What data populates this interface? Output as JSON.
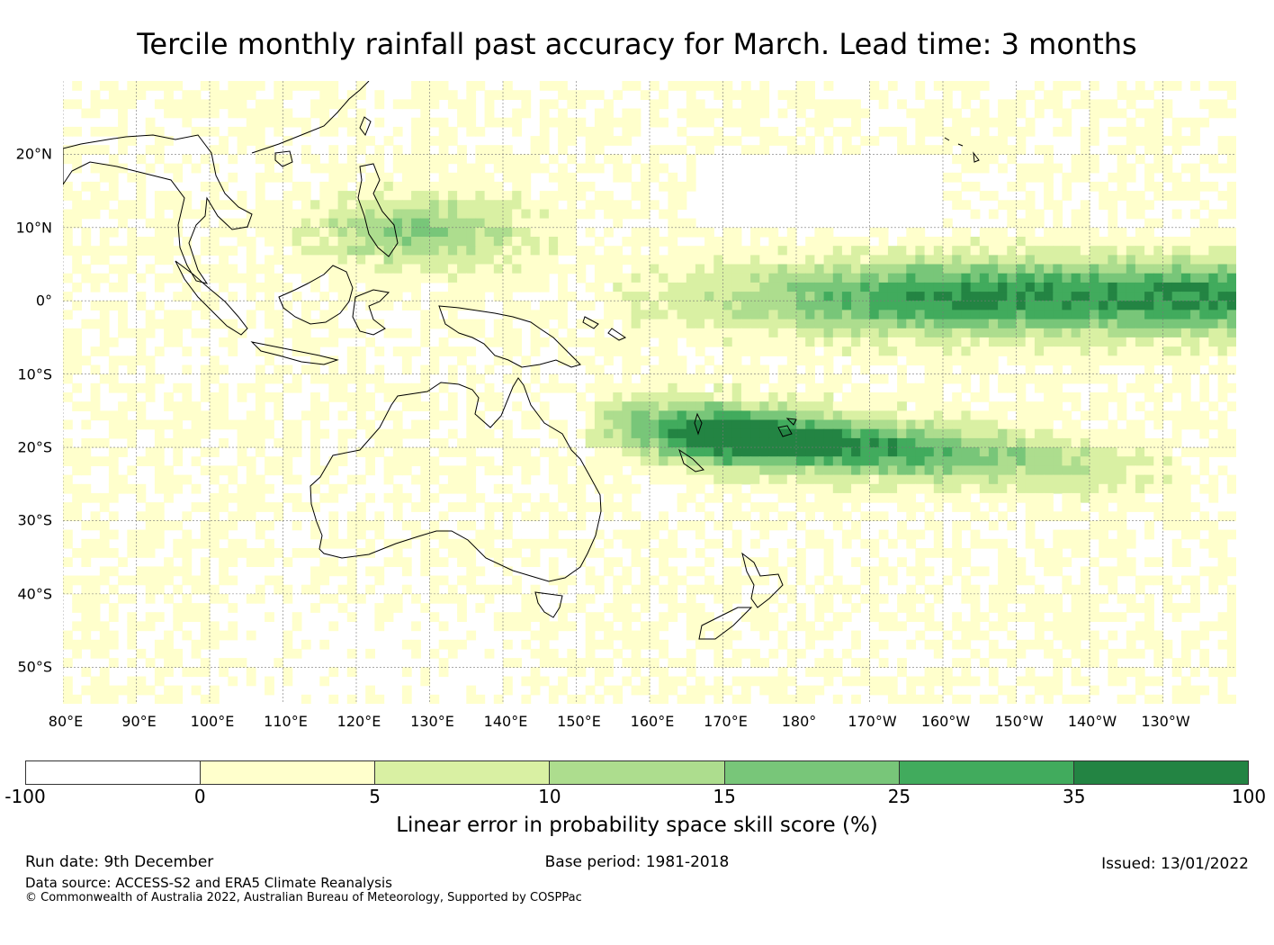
{
  "title": "Tercile monthly rainfall past accuracy for March. Lead time: 3 months",
  "map": {
    "lon_labels": [
      "80°E",
      "90°E",
      "100°E",
      "110°E",
      "120°E",
      "130°E",
      "140°E",
      "150°E",
      "160°E",
      "170°E",
      "180°",
      "170°W",
      "160°W",
      "150°W",
      "140°W",
      "130°W"
    ],
    "lat_labels": [
      "20°N",
      "10°N",
      "0°",
      "10°S",
      "20°S",
      "30°S",
      "40°S",
      "50°S"
    ],
    "lon_range": [
      80,
      240
    ],
    "lat_range": [
      -55,
      30
    ]
  },
  "colorbar": {
    "ticks": [
      "-100",
      "0",
      "5",
      "10",
      "15",
      "25",
      "35",
      "100"
    ],
    "colors": [
      "#ffffff",
      "#ffffcc",
      "#d9f0a3",
      "#addd8e",
      "#78c679",
      "#41ab5d",
      "#238443"
    ],
    "label": "Linear error in probability space skill score (%)"
  },
  "footer": {
    "run_date": "Run date: 9th December",
    "base_period": "Base period: 1981-2018",
    "issued": "Issued: 13/01/2022",
    "data_source": "Data source: ACCESS-S2 and ERA5 Climate Reanalysis",
    "copyright": "© Commonwealth of Australia 2022, Australian Bureau of Meteorology, Supported by COSPPac"
  }
}
